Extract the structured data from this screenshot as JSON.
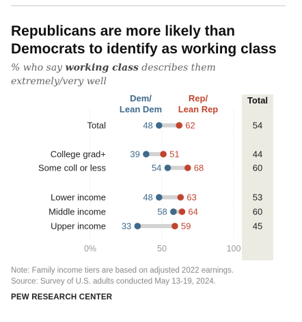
{
  "title": "Republicans are more likely than Democrats to identify as working class",
  "subtitle_prefix": "% who say ",
  "subtitle_bold": "working class",
  "subtitle_suffix": " describes them extremely/very well",
  "note": "Note: Family income tiers are based on adjusted 2022 earnings.",
  "source": "Source: Survey of U.S. adults conducted May 13-19, 2024.",
  "brand": "PEW RESEARCH CENTER",
  "colors": {
    "dem": "#3f6a8c",
    "rep": "#c0452f",
    "total_bg": "#ecebe2",
    "connector": "#d3d3d3"
  },
  "chart_data": {
    "type": "dot",
    "xlim": [
      0,
      100
    ],
    "x_ticks": [
      "0%",
      "50",
      "100"
    ],
    "x_tick_values": [
      0,
      50,
      100
    ],
    "legend": {
      "dem": [
        "Dem/",
        "Lean Dem"
      ],
      "rep": [
        "Rep/",
        "Lean Rep"
      ],
      "total": "Total"
    },
    "series": [
      "Dem/Lean Dem",
      "Rep/Lean Rep",
      "Total"
    ],
    "rows": [
      {
        "label": "Total",
        "dem": 48,
        "rep": 62,
        "total": 54
      },
      {
        "label": "College grad+",
        "dem": 39,
        "rep": 51,
        "total": 44
      },
      {
        "label": "Some coll or less",
        "dem": 54,
        "rep": 68,
        "total": 60
      },
      {
        "label": "Lower income",
        "dem": 48,
        "rep": 63,
        "total": 53
      },
      {
        "label": "Middle income",
        "dem": 58,
        "rep": 64,
        "total": 60
      },
      {
        "label": "Upper income",
        "dem": 33,
        "rep": 59,
        "total": 45
      }
    ]
  }
}
